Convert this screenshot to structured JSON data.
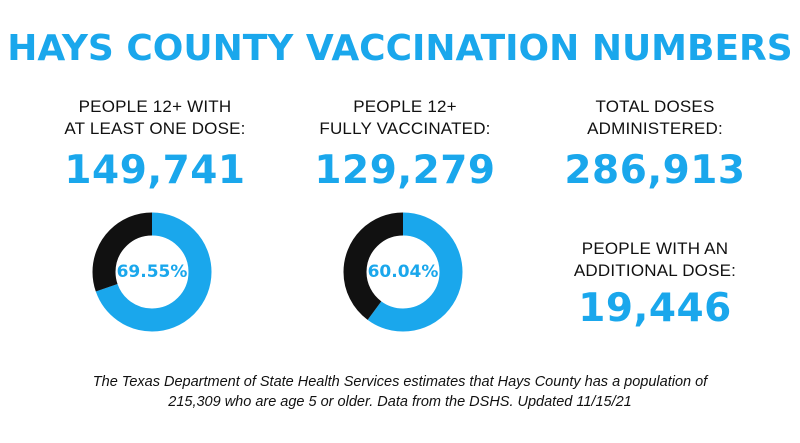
{
  "title": "HAYS COUNTY VACCINATION NUMBERS",
  "colors": {
    "accent": "#1aa7ec",
    "dark": "#111111",
    "text": "#111111"
  },
  "stats": [
    {
      "label_lines": [
        "PEOPLE   12+ WITH",
        "AT LEAST ONE DOSE:"
      ],
      "value": "149,741",
      "percent_label": "69.55%"
    },
    {
      "label_lines": [
        "PEOPLE 12+",
        "FULLY VACCINATED:"
      ],
      "value": "129,279",
      "percent_label": "60.04%"
    },
    {
      "label_lines": [
        "TOTAL DOSES",
        "ADMINISTERED:"
      ],
      "value": "286,913"
    },
    {
      "label_lines": [
        "PEOPLE WITH AN",
        "ADDITIONAL DOSE:"
      ],
      "value": "19,446"
    }
  ],
  "chart_data": [
    {
      "type": "pie",
      "variant": "donut",
      "categories": [
        "With at least one dose",
        "Remaining"
      ],
      "values": [
        69.55,
        30.45
      ],
      "colors": [
        "#1aa7ec",
        "#111111"
      ]
    },
    {
      "type": "pie",
      "variant": "donut",
      "categories": [
        "Fully vaccinated",
        "Remaining"
      ],
      "values": [
        60.04,
        39.96
      ],
      "colors": [
        "#1aa7ec",
        "#111111"
      ]
    }
  ],
  "footnote": {
    "lines": [
      "The Texas Department of State Health Services estimates that Hays County has a population of",
      "215,309 who are age 5 or older. Data from the DSHS. Updated 11/15/21"
    ]
  }
}
